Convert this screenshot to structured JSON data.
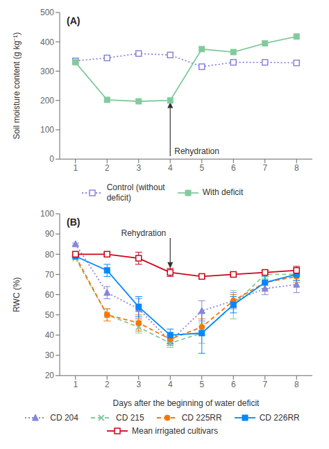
{
  "chart_data": [
    {
      "type": "line",
      "x": [
        1,
        2,
        3,
        4,
        5,
        6,
        7,
        8
      ],
      "xlim": [
        0.5,
        8.5
      ],
      "xticks": [
        1,
        2,
        3,
        4,
        5,
        6,
        7,
        8
      ],
      "ylabel": "Soil moisture content (g kg⁻¹)",
      "ylim": [
        0,
        500
      ],
      "yticks": [
        0,
        100,
        200,
        300,
        400,
        500
      ],
      "grid": false,
      "legend": "bottom",
      "annotations": [
        {
          "text": "(A)"
        },
        {
          "text": "Rehydration",
          "x": 4,
          "y_start": 10,
          "y_end": 195
        }
      ],
      "series": [
        {
          "name": "Control (without\ndeficit)",
          "values": [
            335,
            345,
            360,
            355,
            315,
            330,
            330,
            328
          ],
          "line_style": "dotted",
          "marker": "square_open"
        },
        {
          "name": "With deficit",
          "values": [
            330,
            202,
            197,
            200,
            375,
            365,
            395,
            418
          ],
          "line_style": "solid",
          "marker": "square"
        }
      ]
    },
    {
      "type": "line",
      "x": [
        1,
        2,
        3,
        4,
        5,
        6,
        7,
        8
      ],
      "xlim": [
        0.5,
        8.5
      ],
      "xticks": [
        1,
        2,
        3,
        4,
        5,
        6,
        7,
        8
      ],
      "xlabel": "Days after the beginning of water deficit",
      "ylabel": "RWC (%)",
      "ylim": [
        20,
        100
      ],
      "yticks": [
        20,
        30,
        40,
        50,
        60,
        70,
        80,
        90,
        100
      ],
      "grid": false,
      "legend": "bottom",
      "annotations": [
        {
          "text": "(B)"
        },
        {
          "text": "Rehydration",
          "x": 4,
          "y_start": 88,
          "y_end": 73
        }
      ],
      "series": [
        {
          "name": "CD 204",
          "values": [
            85,
            61,
            53,
            37,
            52,
            57,
            63,
            65
          ],
          "yerr": [
            0.5,
            3,
            5,
            2,
            5,
            4,
            3,
            4
          ],
          "line_style": "dotted",
          "marker": "triangle"
        },
        {
          "name": "CD 215",
          "values": [
            78,
            50,
            44,
            36,
            41,
            55,
            70,
            70
          ],
          "yerr": [
            0.5,
            3,
            3,
            2,
            5,
            7,
            2,
            3
          ],
          "line_style": "dashed",
          "marker": "x"
        },
        {
          "name": "CD 225RR",
          "values": [
            79,
            50,
            46,
            38,
            44,
            57,
            66,
            69
          ],
          "yerr": [
            0.5,
            3,
            4,
            2,
            4,
            3,
            3,
            3
          ],
          "line_style": "dashed",
          "marker": "circle"
        },
        {
          "name": "CD 226RR",
          "values": [
            79,
            72,
            54,
            40,
            41,
            55,
            66,
            70
          ],
          "yerr": [
            0.5,
            3,
            5,
            3,
            10,
            4,
            3,
            3
          ],
          "line_style": "solid",
          "marker": "square"
        },
        {
          "name": "Mean irrigated cultivars",
          "values": [
            80,
            80,
            78,
            71,
            69,
            70,
            71,
            72
          ],
          "yerr": [
            1,
            1,
            3,
            2,
            1,
            1,
            1,
            2
          ],
          "line_style": "solid",
          "marker": "square_open"
        }
      ]
    }
  ]
}
